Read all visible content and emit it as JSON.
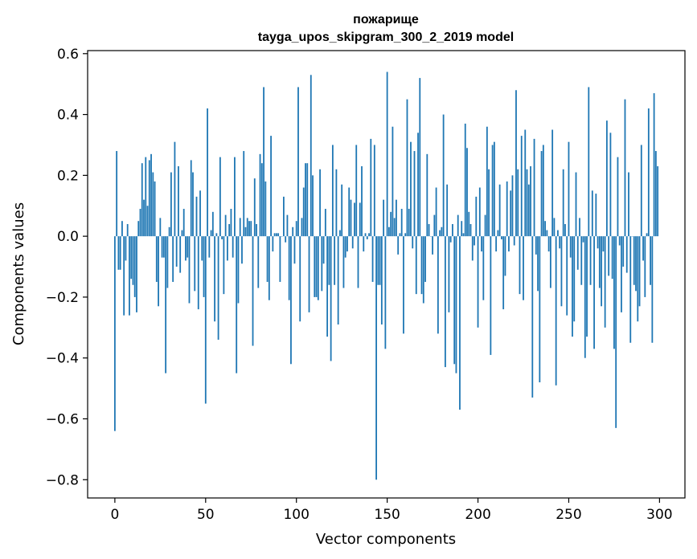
{
  "chart_data": {
    "type": "bar",
    "title": "пожарище",
    "subtitle": "tayga_upos_skipgram_300_2_2019 model",
    "xlabel": "Vector components",
    "ylabel": "Components values",
    "xlim": [
      -15,
      314
    ],
    "ylim": [
      -0.86,
      0.61
    ],
    "xticks": [
      0,
      50,
      100,
      150,
      200,
      250,
      300
    ],
    "xtick_labels": [
      "0",
      "50",
      "100",
      "150",
      "200",
      "250",
      "300"
    ],
    "yticks": [
      -0.8,
      -0.6,
      -0.4,
      -0.2,
      0.0,
      0.2,
      0.4,
      0.6
    ],
    "ytick_labels": [
      "−0.8",
      "−0.6",
      "−0.4",
      "−0.2",
      "0.0",
      "0.2",
      "0.4",
      "0.6"
    ],
    "grid": false,
    "bar_color": "#1f77b4",
    "values": [
      -0.64,
      0.28,
      -0.11,
      -0.11,
      0.05,
      -0.26,
      -0.08,
      0.04,
      -0.26,
      -0.14,
      -0.16,
      -0.2,
      -0.25,
      0.05,
      0.09,
      0.24,
      0.12,
      0.26,
      0.1,
      0.25,
      0.27,
      0.21,
      0.18,
      -0.15,
      -0.23,
      0.06,
      -0.07,
      -0.07,
      -0.45,
      -0.17,
      0.03,
      0.21,
      -0.15,
      0.31,
      -0.1,
      0.23,
      -0.12,
      0.02,
      0.09,
      -0.08,
      -0.07,
      -0.22,
      0.25,
      0.21,
      -0.18,
      0.13,
      -0.24,
      0.15,
      -0.08,
      -0.2,
      -0.55,
      0.42,
      -0.07,
      0.02,
      0.08,
      -0.28,
      0.01,
      -0.34,
      0.26,
      -0.01,
      -0.19,
      0.07,
      -0.08,
      0.04,
      0.09,
      -0.07,
      0.26,
      -0.45,
      -0.22,
      0.06,
      -0.09,
      0.28,
      0.03,
      0.06,
      0.05,
      0.05,
      -0.36,
      0.19,
      0.04,
      -0.17,
      0.27,
      0.24,
      0.49,
      0.18,
      -0.15,
      -0.21,
      0.33,
      -0.05,
      0.01,
      0.01,
      0.01,
      -0.15,
      0.0,
      0.13,
      -0.02,
      0.07,
      -0.21,
      -0.42,
      0.03,
      -0.09,
      0.05,
      0.49,
      -0.28,
      0.06,
      0.16,
      0.24,
      0.24,
      -0.25,
      0.53,
      0.2,
      -0.2,
      -0.2,
      -0.21,
      0.22,
      -0.18,
      -0.09,
      0.09,
      -0.33,
      -0.16,
      -0.41,
      0.3,
      -0.16,
      0.22,
      -0.29,
      0.02,
      0.17,
      -0.17,
      -0.07,
      -0.05,
      0.16,
      0.12,
      -0.04,
      0.11,
      0.3,
      -0.17,
      0.11,
      0.23,
      -0.05,
      0.01,
      -0.01,
      0.01,
      0.32,
      -0.15,
      0.3,
      -0.8,
      -0.16,
      -0.16,
      -0.29,
      0.12,
      -0.37,
      0.54,
      0.03,
      0.08,
      0.36,
      0.06,
      0.12,
      -0.06,
      0.01,
      0.09,
      -0.32,
      0.01,
      0.45,
      0.09,
      0.31,
      -0.04,
      0.28,
      -0.19,
      0.34,
      0.52,
      -0.19,
      -0.22,
      -0.15,
      0.27,
      0.04,
      0.0,
      -0.06,
      0.07,
      0.16,
      -0.32,
      0.02,
      0.03,
      0.4,
      -0.43,
      0.17,
      -0.25,
      -0.02,
      0.04,
      -0.42,
      -0.45,
      0.07,
      -0.57,
      0.05,
      0.01,
      0.37,
      0.29,
      0.08,
      0.04,
      -0.08,
      -0.03,
      0.13,
      -0.3,
      0.16,
      -0.05,
      -0.21,
      0.07,
      0.36,
      0.22,
      -0.39,
      0.3,
      0.31,
      -0.05,
      0.02,
      0.17,
      -0.01,
      -0.24,
      -0.13,
      0.18,
      -0.05,
      0.15,
      0.2,
      -0.03,
      0.48,
      0.22,
      -0.19,
      0.33,
      -0.21,
      0.35,
      0.22,
      0.17,
      0.23,
      -0.53,
      0.32,
      -0.06,
      -0.18,
      -0.48,
      0.28,
      0.3,
      0.05,
      0.02,
      -0.05,
      -0.17,
      0.35,
      0.06,
      -0.49,
      0.02,
      -0.04,
      -0.23,
      0.22,
      0.04,
      -0.26,
      0.31,
      -0.07,
      -0.33,
      -0.28,
      0.21,
      -0.11,
      0.06,
      -0.16,
      -0.02,
      -0.4,
      -0.33,
      0.49,
      -0.16,
      0.15,
      -0.37,
      0.14,
      -0.04,
      -0.17,
      -0.23,
      -0.05,
      -0.3,
      0.38,
      -0.13,
      0.34,
      -0.14,
      -0.37,
      -0.63,
      0.26,
      -0.03,
      -0.25,
      -0.1,
      0.45,
      -0.12,
      0.21,
      -0.35,
      0.0,
      -0.16,
      -0.18,
      -0.28,
      -0.23,
      0.3,
      -0.08,
      -0.2,
      0.01,
      0.42,
      -0.16,
      -0.35,
      0.47,
      0.28,
      0.23
    ]
  }
}
